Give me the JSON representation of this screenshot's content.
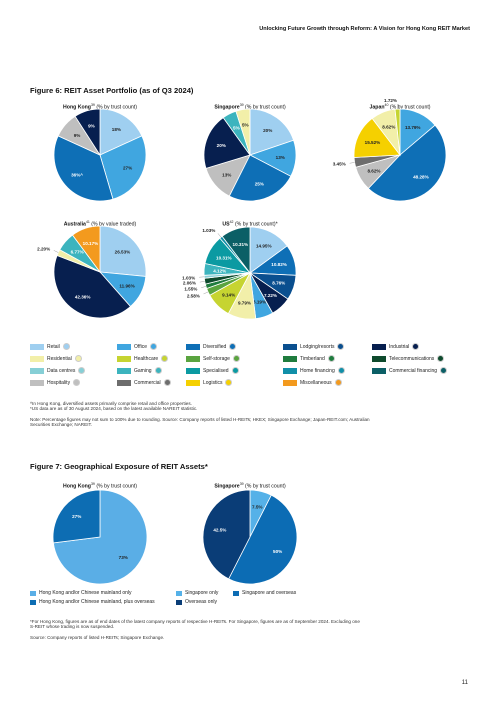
{
  "page": {
    "header": "Unlocking Future Growth through Reform: A Vision for Hong Kong REIT Market",
    "page_number": "11"
  },
  "figure6": {
    "title": "Figure 6: REIT Asset Portfolio (as of Q3 2024)",
    "notes": [
      "^In Hong Kong, diversified assets primarily comprise retail and office properties.",
      "*US data are as of 30 August 2024, based on the latest available NAREIT statistic.",
      "",
      "Note: Percentage figures may not sum to 100% due to rounding. Source: Company reports of listed H-REITs; HKEX; Singapore Exchange; Japan-REIT.com; Australian",
      "Securities Exchange; NAREIT."
    ]
  },
  "figure7": {
    "title": "Figure 7: Geographical Exposure of REIT Assets*",
    "notes": [
      "*For Hong Kong, figures are as of end dates of the latest company reports of respective H-REITs. For Singapore, figures are as of September 2024. Excluding one",
      "S-REIT whose trading is now suspended.",
      "",
      "Source: Company reports of listed H-REITs; Singapore Exchange."
    ]
  },
  "colors": {
    "retail": "#9fcff0",
    "office": "#40a6e0",
    "diversified": "#0e6fb6",
    "lodging": "#0a4f8f",
    "industrial": "#071f4f",
    "residential": "#f2efa9",
    "healthcare": "#c6d431",
    "self_storage": "#5aa43f",
    "timberland": "#1f7c3e",
    "telecommunications": "#0e4a2d",
    "data_centres": "#86cfd6",
    "gaming": "#3cb4be",
    "specialised": "#0b9aa2",
    "home_financing": "#118fa8",
    "commercial_financing": "#0b5f66",
    "hospitality": "#bfbfbf",
    "commercial": "#6d6d6d",
    "logistics": "#f5d000",
    "miscellaneous": "#f39a1e",
    "sg_only": "#55b1e8",
    "sg_overseas": "#0c6cb4",
    "overseas_only": "#0a3d77",
    "hk_only": "#5aaee6",
    "hk_overseas": "#0d6db3"
  },
  "legend": {
    "rows": [
      [
        {
          "label": "Retail",
          "color": "retail"
        },
        {
          "label": "Office",
          "color": "office"
        },
        {
          "label": "Diversified",
          "color": "diversified"
        },
        {
          "label": "Lodging/resorts",
          "color": "lodging"
        },
        {
          "label": "Industrial",
          "color": "industrial"
        }
      ],
      [
        {
          "label": "Residential",
          "color": "residential"
        },
        {
          "label": "Healthcare",
          "color": "healthcare"
        },
        {
          "label": "Self-storage",
          "color": "self_storage"
        },
        {
          "label": "Timberland",
          "color": "timberland"
        },
        {
          "label": "Telecommunications",
          "color": "telecommunications"
        }
      ],
      [
        {
          "label": "Data centres",
          "color": "data_centres"
        },
        {
          "label": "Gaming",
          "color": "gaming"
        },
        {
          "label": "Specialised",
          "color": "specialised"
        },
        {
          "label": "Home financing",
          "color": "home_financing"
        },
        {
          "label": "Commercial financing",
          "color": "commercial_financing"
        }
      ],
      [
        {
          "label": "Hospitality",
          "color": "hospitality"
        },
        {
          "label": "Commercial",
          "color": "commercial"
        },
        {
          "label": "Logistics",
          "color": "logistics"
        },
        {
          "label": "Miscellaneous",
          "color": "miscellaneous"
        }
      ]
    ],
    "fig7": [
      {
        "label": "Hong Kong and/or Chinese mainland only",
        "color": "hk_only"
      },
      {
        "label": "Singapore only",
        "color": "sg_only"
      },
      {
        "label": "Singapore and overseas",
        "color": "sg_overseas"
      },
      {
        "label": "Hong Kong and/or Chinese mainland, plus overseas",
        "color": "hk_overseas"
      },
      {
        "label": "Overseas only",
        "color": "overseas_only"
      }
    ]
  },
  "chart_data": [
    {
      "type": "pie",
      "title": "Hong Kong",
      "title_sup": "39",
      "subtitle": "(% by trust count)",
      "slices": [
        {
          "label": "18%",
          "value": 18,
          "color": "retail"
        },
        {
          "label": "27%",
          "value": 27,
          "color": "office"
        },
        {
          "label": "36%^",
          "value": 36,
          "color": "diversified"
        },
        {
          "label": "9%",
          "value": 9,
          "color": "hospitality"
        },
        {
          "label": "9%",
          "value": 9,
          "color": "industrial"
        }
      ]
    },
    {
      "type": "pie",
      "title": "Singapore",
      "title_sup": "39",
      "subtitle": "(% by trust count)",
      "slices": [
        {
          "label": "20%",
          "value": 20,
          "color": "retail"
        },
        {
          "label": "13%",
          "value": 13,
          "color": "office"
        },
        {
          "label": "25%",
          "value": 25,
          "color": "diversified"
        },
        {
          "label": "13%",
          "value": 13,
          "color": "hospitality"
        },
        {
          "label": "20%",
          "value": 20,
          "color": "industrial"
        },
        {
          "label": "5%",
          "value": 5,
          "color": "gaming"
        },
        {
          "label": "5%",
          "value": 5,
          "color": "residential"
        }
      ]
    },
    {
      "type": "pie",
      "title": "Japan",
      "title_sup": "40",
      "subtitle": "(% by trust count)",
      "slices": [
        {
          "label": "13.79%",
          "value": 13.79,
          "color": "office"
        },
        {
          "label": "48.28%",
          "value": 48.28,
          "color": "diversified"
        },
        {
          "label": "8.62%",
          "value": 8.62,
          "color": "hospitality"
        },
        {
          "label": "3.45%",
          "value": 3.45,
          "color": "commercial"
        },
        {
          "label": "15.52%",
          "value": 15.52,
          "color": "logistics"
        },
        {
          "label": "8.62%",
          "value": 8.62,
          "color": "residential"
        },
        {
          "label": "1.72%",
          "value": 1.72,
          "color": "healthcare"
        }
      ]
    },
    {
      "type": "pie",
      "title": "Australia",
      "title_sup": "41",
      "subtitle": "(% by value traded)",
      "slices": [
        {
          "label": "26.53%",
          "value": 26.53,
          "color": "retail"
        },
        {
          "label": "11.96%",
          "value": 11.96,
          "color": "office"
        },
        {
          "label": "42.36%",
          "value": 42.36,
          "color": "industrial"
        },
        {
          "label": "2.20%",
          "value": 2.2,
          "color": "residential"
        },
        {
          "label": "6.77%",
          "value": 6.77,
          "color": "gaming"
        },
        {
          "label": "10.17%",
          "value": 10.17,
          "color": "miscellaneous"
        }
      ]
    },
    {
      "type": "pie",
      "title": "US",
      "title_sup": "42",
      "subtitle": "(% by trust count)*",
      "slices": [
        {
          "label": "14.95%",
          "value": 14.95,
          "color": "retail"
        },
        {
          "label": "10.82%",
          "value": 10.82,
          "color": "diversified"
        },
        {
          "label": "8.76%",
          "value": 8.76,
          "color": "lodging"
        },
        {
          "label": "7.22%",
          "value": 7.22,
          "color": "industrial"
        },
        {
          "label": "6.19%",
          "value": 6.19,
          "color": "office"
        },
        {
          "label": "9.79%",
          "value": 9.79,
          "color": "residential"
        },
        {
          "label": "9.14%",
          "value": 9.14,
          "color": "healthcare"
        },
        {
          "label": "2.58%",
          "value": 2.58,
          "color": "self_storage"
        },
        {
          "label": "1.55%",
          "value": 1.55,
          "color": "timberland"
        },
        {
          "label": "2.06%",
          "value": 2.06,
          "color": "telecommunications"
        },
        {
          "label": "1.03%",
          "value": 1.03,
          "color": "data_centres"
        },
        {
          "label": "4.12%",
          "value": 4.12,
          "color": "gaming"
        },
        {
          "label": "10.31%",
          "value": 10.31,
          "color": "specialised"
        },
        {
          "label": "1.03%",
          "value": 1.03,
          "color": "home_financing"
        },
        {
          "label": "10.31%",
          "value": 10.31,
          "color": "commercial_financing"
        }
      ]
    },
    {
      "type": "pie",
      "title": "Hong Kong",
      "title_sup": "39",
      "subtitle": "(% by trust count)",
      "slices": [
        {
          "label": "73%",
          "value": 73,
          "color": "hk_only"
        },
        {
          "label": "27%",
          "value": 27,
          "color": "hk_overseas"
        }
      ]
    },
    {
      "type": "pie",
      "title": "Singapore",
      "title_sup": "39",
      "subtitle": "(% by trust count)",
      "slices": [
        {
          "label": "7.5%",
          "value": 7.5,
          "color": "sg_only"
        },
        {
          "label": "50%",
          "value": 50,
          "color": "sg_overseas"
        },
        {
          "label": "42.5%",
          "value": 42.5,
          "color": "overseas_only"
        }
      ]
    }
  ]
}
